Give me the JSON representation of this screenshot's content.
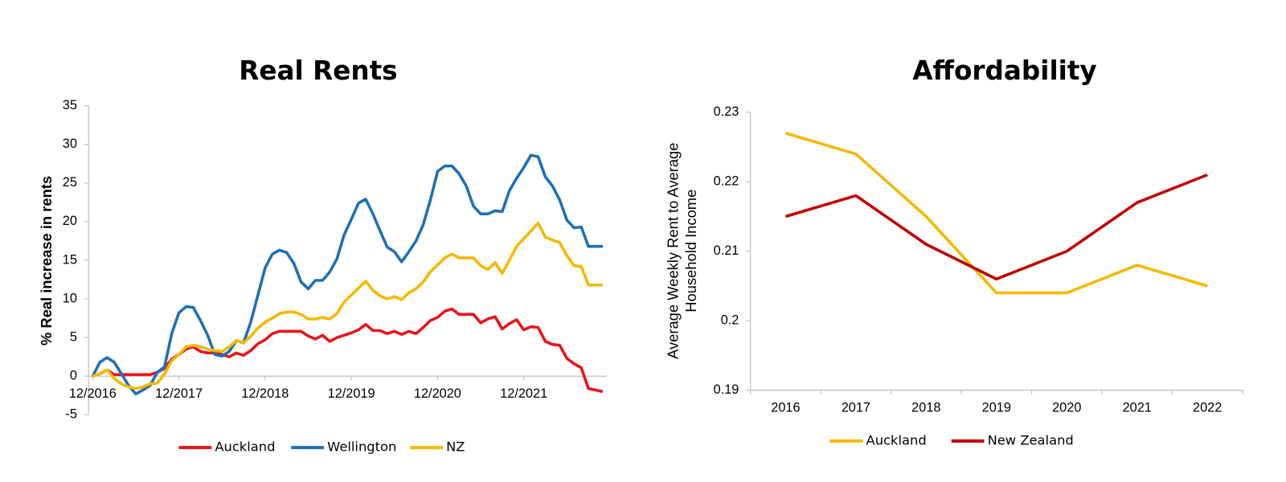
{
  "chart_data": [
    {
      "type": "line",
      "title": "Real Rents",
      "y_label": [
        "% Real increase in rents"
      ],
      "categories": [
        "12/2016",
        null,
        null,
        null,
        null,
        null,
        null,
        null,
        null,
        null,
        null,
        null,
        "12/2017",
        null,
        null,
        null,
        null,
        null,
        null,
        null,
        null,
        null,
        null,
        null,
        "12/2018",
        null,
        null,
        null,
        null,
        null,
        null,
        null,
        null,
        null,
        null,
        null,
        "12/2019",
        null,
        null,
        null,
        null,
        null,
        null,
        null,
        null,
        null,
        null,
        null,
        "12/2020",
        null,
        null,
        null,
        null,
        null,
        null,
        null,
        null,
        null,
        null,
        null,
        "12/2021",
        null,
        null,
        null,
        null,
        null,
        null,
        null,
        null,
        null,
        null,
        null
      ],
      "ylim": [
        -5,
        35
      ],
      "yticks": [
        -5,
        0,
        5,
        10,
        15,
        20,
        25,
        30,
        35
      ],
      "grid": false,
      "series": [
        {
          "name": "Auckland",
          "color": "#e8141c",
          "values": [
            0,
            0.3,
            0.8,
            0.2,
            0.2,
            0.2,
            0.2,
            0.2,
            0.2,
            0.5,
            1,
            2.2,
            2.8,
            3.5,
            3.8,
            3.2,
            3,
            3,
            2.8,
            2.5,
            3,
            2.7,
            3.3,
            4.2,
            4.7,
            5.5,
            5.8,
            5.8,
            5.8,
            5.8,
            5.2,
            4.8,
            5.3,
            4.5,
            5,
            5.3,
            5.6,
            6,
            6.7,
            5.9,
            5.9,
            5.5,
            5.8,
            5.4,
            5.8,
            5.5,
            6.3,
            7.2,
            7.6,
            8.4,
            8.7,
            8,
            8,
            8,
            6.9,
            7.4,
            7.7,
            6.1,
            6.8,
            7.3,
            6,
            6.4,
            6.3,
            4.5,
            4.1,
            4,
            2.3,
            1.6,
            1.1,
            -1.6,
            -1.8,
            -2
          ]
        },
        {
          "name": "Wellington",
          "color": "#1f6fb5",
          "values": [
            0,
            1.8,
            2.4,
            1.8,
            0.3,
            -1.2,
            -2.3,
            -1.8,
            -1.2,
            0.5,
            1.2,
            5.5,
            8.2,
            9,
            8.9,
            7.2,
            5.3,
            2.8,
            2.6,
            3.2,
            4.6,
            4.3,
            7,
            10.5,
            14,
            15.8,
            16.3,
            16,
            14.6,
            12.2,
            11.3,
            12.4,
            12.4,
            13.5,
            15.2,
            18.3,
            20.3,
            22.4,
            22.9,
            21,
            18.8,
            16.7,
            16.1,
            14.8,
            16.1,
            17.5,
            19.6,
            22.8,
            26.5,
            27.2,
            27.2,
            26.2,
            24.6,
            22,
            21,
            21,
            21.4,
            21.3,
            24,
            25.6,
            27,
            28.6,
            28.4,
            25.8,
            24.6,
            22.8,
            20.2,
            19.2,
            19.3,
            16.8,
            16.8,
            16.8
          ]
        },
        {
          "name": "NZ",
          "color": "#f5b800",
          "values": [
            0,
            0.3,
            0.8,
            -0.3,
            -1,
            -1.4,
            -1.6,
            -1.4,
            -1,
            -0.9,
            0.3,
            2,
            2.8,
            3.8,
            4,
            3.8,
            3.5,
            3.3,
            3.2,
            3.8,
            4.6,
            4.3,
            5.2,
            6.2,
            7,
            7.5,
            8.1,
            8.3,
            8.3,
            8,
            7.4,
            7.4,
            7.6,
            7.4,
            8.1,
            9.6,
            10.5,
            11.4,
            12.3,
            11.1,
            10.4,
            10,
            10.3,
            9.9,
            10.8,
            11.3,
            12.2,
            13.5,
            14.4,
            15.3,
            15.8,
            15.3,
            15.3,
            15.3,
            14.3,
            13.8,
            14.7,
            13.3,
            15,
            16.8,
            17.8,
            18.8,
            19.8,
            18,
            17.6,
            17.3,
            15.6,
            14.3,
            14.2,
            11.8,
            11.8,
            11.8
          ]
        }
      ]
    },
    {
      "type": "line",
      "title": "Affordability",
      "y_label": [
        "Average Weekly Rent to Average",
        "Household Income"
      ],
      "categories": [
        "2016",
        "2017",
        "2018",
        "2019",
        "2020",
        "2021",
        "2022"
      ],
      "ylim": [
        0.19,
        0.23
      ],
      "yticks": [
        0.19,
        0.2,
        0.21,
        0.22,
        0.23
      ],
      "grid": false,
      "series": [
        {
          "name": "Auckland",
          "color": "#f5b800",
          "values": [
            0.227,
            0.224,
            0.215,
            0.204,
            0.204,
            0.208,
            0.205
          ]
        },
        {
          "name": "New Zealand",
          "color": "#c00000",
          "values": [
            0.215,
            0.218,
            0.211,
            0.206,
            0.21,
            0.217,
            0.221
          ]
        }
      ]
    }
  ]
}
